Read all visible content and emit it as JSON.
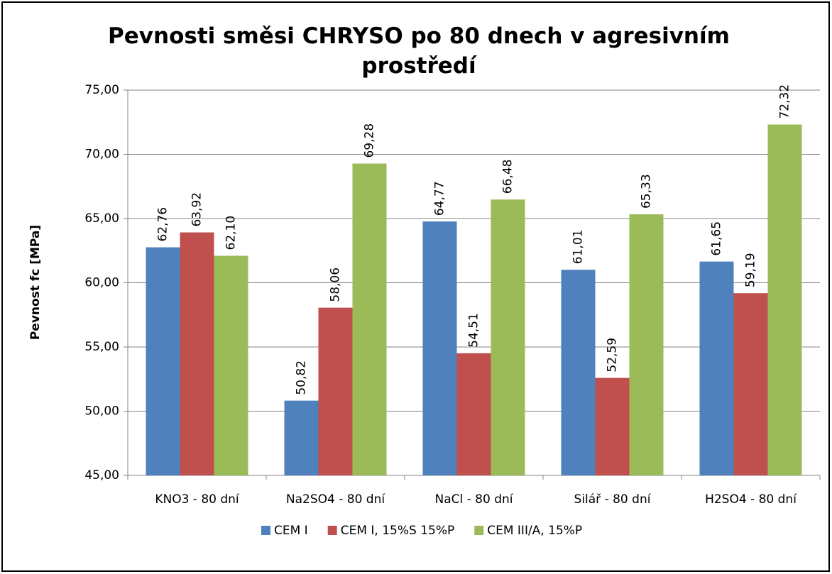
{
  "chart_data": {
    "type": "bar",
    "title": "Pevnosti směsi CHRYSO po 80 dnech v agresivním prostředí",
    "y_label": "Pevnost fc [MPa]",
    "categories": [
      "KNO3 - 80 dní",
      "Na2SO4 - 80 dní",
      "NaCl - 80 dní",
      "Silář - 80 dní",
      "H2SO4 - 80 dní"
    ],
    "series": [
      {
        "name": "CEM I",
        "color": "#4f81bd",
        "values": [
          62.76,
          50.82,
          64.77,
          61.01,
          61.65
        ],
        "value_labels": [
          "62,76",
          "50,82",
          "64,77",
          "61,01",
          "61,65"
        ]
      },
      {
        "name": "CEM I, 15%S 15%P",
        "color": "#c0504d",
        "values": [
          63.92,
          58.06,
          54.51,
          52.59,
          59.19
        ],
        "value_labels": [
          "63,92",
          "58,06",
          "54,51",
          "52,59",
          "59,19"
        ]
      },
      {
        "name": "CEM III/A, 15%P",
        "color": "#9bbb59",
        "values": [
          62.1,
          69.28,
          66.48,
          65.33,
          72.32
        ],
        "value_labels": [
          "62,10",
          "69,28",
          "66,48",
          "65,33",
          "72,32"
        ]
      }
    ],
    "ylim": [
      45,
      75
    ],
    "yticks": [
      {
        "value": 45,
        "label": "45,00"
      },
      {
        "value": 50,
        "label": "50,00"
      },
      {
        "value": 55,
        "label": "55,00"
      },
      {
        "value": 60,
        "label": "60,00"
      },
      {
        "value": 65,
        "label": "65,00"
      },
      {
        "value": 70,
        "label": "70,00"
      },
      {
        "value": 75,
        "label": "75,00"
      }
    ],
    "grid": true,
    "legend": "bottom"
  }
}
